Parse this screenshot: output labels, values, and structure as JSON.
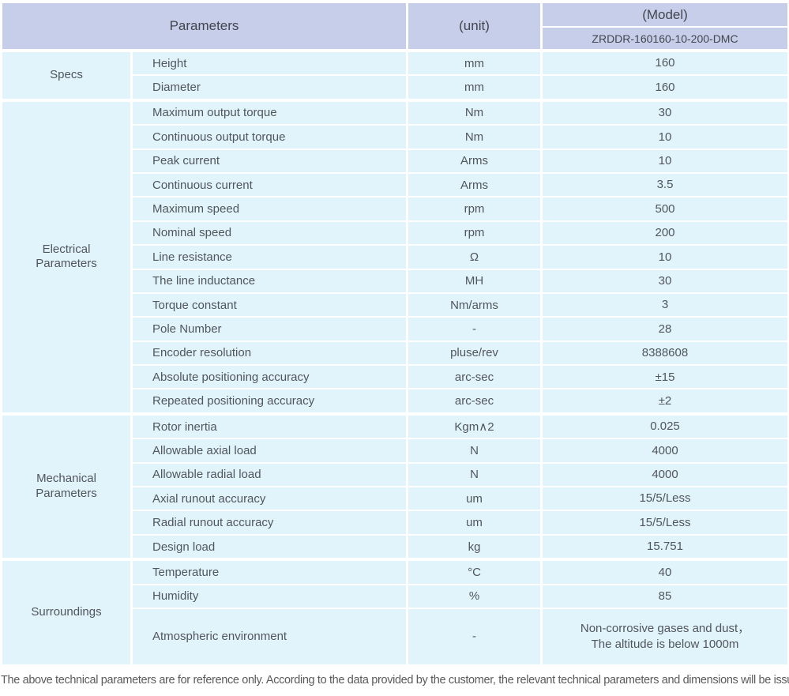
{
  "table": {
    "header": {
      "parameters_label": "Parameters",
      "unit_label": "(unit)",
      "model_label": "(Model)",
      "model_value": "ZRDDR-160160-10-200-DMC"
    },
    "groups": [
      {
        "id": "specs",
        "label": "Specs",
        "rows": [
          {
            "param": "Height",
            "unit": "mm",
            "value": "160"
          },
          {
            "param": "Diameter",
            "unit": "mm",
            "value": "160"
          }
        ]
      },
      {
        "id": "electrical-parameters",
        "label": "Electrical\nParameters",
        "rows": [
          {
            "param": "Maximum output torque",
            "unit": "Nm",
            "value": "30"
          },
          {
            "param": "Continuous output torque",
            "unit": "Nm",
            "value": "10"
          },
          {
            "param": "Peak current",
            "unit": "Arms",
            "value": "10"
          },
          {
            "param": "Continuous current",
            "unit": "Arms",
            "value": "3.5"
          },
          {
            "param": "Maximum speed",
            "unit": "rpm",
            "value": "500"
          },
          {
            "param": "Nominal speed",
            "unit": "rpm",
            "value": "200"
          },
          {
            "param": "Line resistance",
            "unit": "Ω",
            "value": "10"
          },
          {
            "param": "The line inductance",
            "unit": "MH",
            "value": "30"
          },
          {
            "param": "Torque constant",
            "unit": "Nm/arms",
            "value": "3"
          },
          {
            "param": "Pole Number",
            "unit": "-",
            "value": "28"
          },
          {
            "param": "Encoder resolution",
            "unit": "pluse/rev",
            "value": "8388608"
          },
          {
            "param": "Absolute positioning accuracy",
            "unit": "arc-sec",
            "value": "±15"
          },
          {
            "param": "Repeated positioning accuracy",
            "unit": "arc-sec",
            "value": "±2"
          }
        ]
      },
      {
        "id": "mechanical-parameters",
        "label": "Mechanical\nParameters",
        "rows": [
          {
            "param": "Rotor inertia",
            "unit": "Kgm∧2",
            "value": "0.025"
          },
          {
            "param": "Allowable axial load",
            "unit": "N",
            "value": "4000"
          },
          {
            "param": "Allowable radial load",
            "unit": "N",
            "value": "4000"
          },
          {
            "param": "Axial runout accuracy",
            "unit": "um",
            "value": "15/5/Less"
          },
          {
            "param": "Radial runout accuracy",
            "unit": "um",
            "value": "15/5/Less"
          },
          {
            "param": "Design load",
            "unit": "kg",
            "value": "15.751"
          }
        ]
      },
      {
        "id": "surroundings",
        "label": "Surroundings",
        "rows": [
          {
            "param": "Temperature",
            "unit": "°C",
            "value": "40"
          },
          {
            "param": "Humidity",
            "unit": "%",
            "value": "85"
          },
          {
            "param": "Atmospheric environment",
            "unit": "-",
            "value": "Non-corrosive gases and dust，\nThe altitude is below 1000m",
            "tall": true
          }
        ]
      }
    ],
    "footer_note": "The above technical parameters are for reference only. According to the data provided by the customer, the relevant technical parameters and dimensions will be issued."
  },
  "colors": {
    "header_bg": "#c6cee9",
    "cell_bg": "#e1f4fb",
    "text": "#51555c",
    "footer_text": "#5a5a5a"
  },
  "chart_data": {
    "type": "table",
    "title": "(Model) ZRDDR-160160-10-200-DMC",
    "columns": [
      "Group",
      "Parameters",
      "(unit)",
      "ZRDDR-160160-10-200-DMC"
    ],
    "rows": [
      [
        "Specs",
        "Height",
        "mm",
        "160"
      ],
      [
        "Specs",
        "Diameter",
        "mm",
        "160"
      ],
      [
        "Electrical Parameters",
        "Maximum output torque",
        "Nm",
        "30"
      ],
      [
        "Electrical Parameters",
        "Continuous output torque",
        "Nm",
        "10"
      ],
      [
        "Electrical Parameters",
        "Peak current",
        "Arms",
        "10"
      ],
      [
        "Electrical Parameters",
        "Continuous current",
        "Arms",
        "3.5"
      ],
      [
        "Electrical Parameters",
        "Maximum speed",
        "rpm",
        "500"
      ],
      [
        "Electrical Parameters",
        "Nominal speed",
        "rpm",
        "200"
      ],
      [
        "Electrical Parameters",
        "Line resistance",
        "Ω",
        "10"
      ],
      [
        "Electrical Parameters",
        "The line inductance",
        "MH",
        "30"
      ],
      [
        "Electrical Parameters",
        "Torque constant",
        "Nm/arms",
        "3"
      ],
      [
        "Electrical Parameters",
        "Pole Number",
        "-",
        "28"
      ],
      [
        "Electrical Parameters",
        "Encoder resolution",
        "pluse/rev",
        "8388608"
      ],
      [
        "Electrical Parameters",
        "Absolute positioning accuracy",
        "arc-sec",
        "±15"
      ],
      [
        "Electrical Parameters",
        "Repeated positioning accuracy",
        "arc-sec",
        "±2"
      ],
      [
        "Mechanical Parameters",
        "Rotor inertia",
        "Kgm∧2",
        "0.025"
      ],
      [
        "Mechanical Parameters",
        "Allowable axial load",
        "N",
        "4000"
      ],
      [
        "Mechanical Parameters",
        "Allowable radial load",
        "N",
        "4000"
      ],
      [
        "Mechanical Parameters",
        "Axial runout accuracy",
        "um",
        "15/5/Less"
      ],
      [
        "Mechanical Parameters",
        "Radial runout accuracy",
        "um",
        "15/5/Less"
      ],
      [
        "Mechanical Parameters",
        "Design load",
        "kg",
        "15.751"
      ],
      [
        "Surroundings",
        "Temperature",
        "°C",
        "40"
      ],
      [
        "Surroundings",
        "Humidity",
        "%",
        "85"
      ],
      [
        "Surroundings",
        "Atmospheric environment",
        "-",
        "Non-corrosive gases and dust，The altitude is below 1000m"
      ]
    ],
    "footnote": "The above technical parameters are for reference only. According to the data provided by the customer, the relevant technical parameters and dimensions will be issued."
  }
}
